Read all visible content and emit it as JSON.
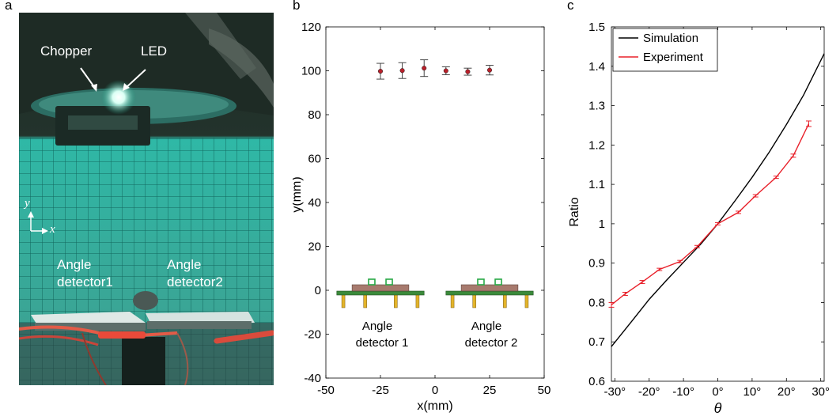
{
  "panels": {
    "a": {
      "letter": "a",
      "labels": {
        "chopper": "Chopper",
        "led": "LED",
        "axis_y": "y",
        "axis_x": "x",
        "detector1_line1": "Angle",
        "detector1_line2": "detector1",
        "detector2_line1": "Angle",
        "detector2_line2": "detector2"
      }
    },
    "b": {
      "letter": "b"
    },
    "c": {
      "letter": "c"
    }
  },
  "chart_data": [
    {
      "type": "scatter",
      "panel": "b",
      "xlabel": "x(mm)",
      "ylabel": "y(mm)",
      "xlim": [
        -50,
        50
      ],
      "ylim": [
        -40,
        120
      ],
      "xticks": [
        -50,
        -25,
        0,
        25,
        50
      ],
      "yticks": [
        -40,
        -20,
        0,
        20,
        40,
        60,
        80,
        100,
        120
      ],
      "tick_labels_x": [
        "-50",
        "-25",
        "0",
        "25",
        "50"
      ],
      "tick_labels_y": [
        "-40",
        "-20",
        "0",
        "20",
        "40",
        "60",
        "80",
        "100",
        "120"
      ],
      "grid": false,
      "points": [
        {
          "x": -25,
          "y": 99.8,
          "err_y": 3.6,
          "err_x": 0.8
        },
        {
          "x": -15,
          "y": 100.1,
          "err_y": 3.6,
          "err_x": 0.8
        },
        {
          "x": -5,
          "y": 101.2,
          "err_y": 3.8,
          "err_x": 0.8
        },
        {
          "x": 5,
          "y": 100.0,
          "err_y": 1.8,
          "err_x": 0.8
        },
        {
          "x": 15,
          "y": 99.6,
          "err_y": 1.6,
          "err_x": 0.8
        },
        {
          "x": 25,
          "y": 100.3,
          "err_y": 2.2,
          "err_x": 0.8
        }
      ],
      "annotations": [
        {
          "line1": "Angle",
          "line2": "detector 1",
          "x_center": -25
        },
        {
          "line1": "Angle",
          "line2": "detector 2",
          "x_center": 25
        }
      ],
      "colors": {
        "point_fill": "#b8202a",
        "error_bar": "#333333",
        "board": "#3a8a3a",
        "chip": "#a77a6e",
        "sensor": "#27a845",
        "pin": "#e3b42a"
      }
    },
    {
      "type": "line",
      "panel": "c",
      "xlabel": "θ",
      "ylabel": "Ratio",
      "xlim": [
        -31,
        31
      ],
      "ylim": [
        0.6,
        1.5
      ],
      "xticks": [
        -30,
        -20,
        -10,
        0,
        10,
        20,
        30
      ],
      "yticks": [
        0.6,
        0.7,
        0.8,
        0.9,
        1.0,
        1.1,
        1.2,
        1.3,
        1.4,
        1.5
      ],
      "tick_labels_x": [
        "-30°",
        "-20°",
        "-10°",
        "0°",
        "10°",
        "20°",
        "30°"
      ],
      "tick_labels_y": [
        "0.6",
        "0.7",
        "0.8",
        "0.9",
        "1",
        "1.1",
        "1.2",
        "1.3",
        "1.4",
        "1.5"
      ],
      "grid": false,
      "legend": "top-left",
      "series": [
        {
          "name": "Simulation",
          "color": "#000000",
          "x": [
            -31,
            -25,
            -20,
            -15,
            -10,
            -5,
            0,
            5,
            10,
            15,
            20,
            25,
            31
          ],
          "y": [
            0.688,
            0.753,
            0.808,
            0.856,
            0.902,
            0.948,
            1.0,
            1.058,
            1.118,
            1.182,
            1.252,
            1.327,
            1.432
          ]
        },
        {
          "name": "Experiment",
          "color": "#e8202a",
          "x": [
            -31,
            -27,
            -22,
            -17,
            -11,
            -6,
            0,
            6,
            11,
            17,
            22,
            26.5
          ],
          "y": [
            0.794,
            0.822,
            0.852,
            0.884,
            0.904,
            0.942,
            1.0,
            1.029,
            1.071,
            1.118,
            1.173,
            1.254
          ],
          "err": [
            0.006,
            0.004,
            0.004,
            0.003,
            0.003,
            0.003,
            0.003,
            0.003,
            0.003,
            0.003,
            0.004,
            0.007
          ]
        }
      ]
    }
  ]
}
